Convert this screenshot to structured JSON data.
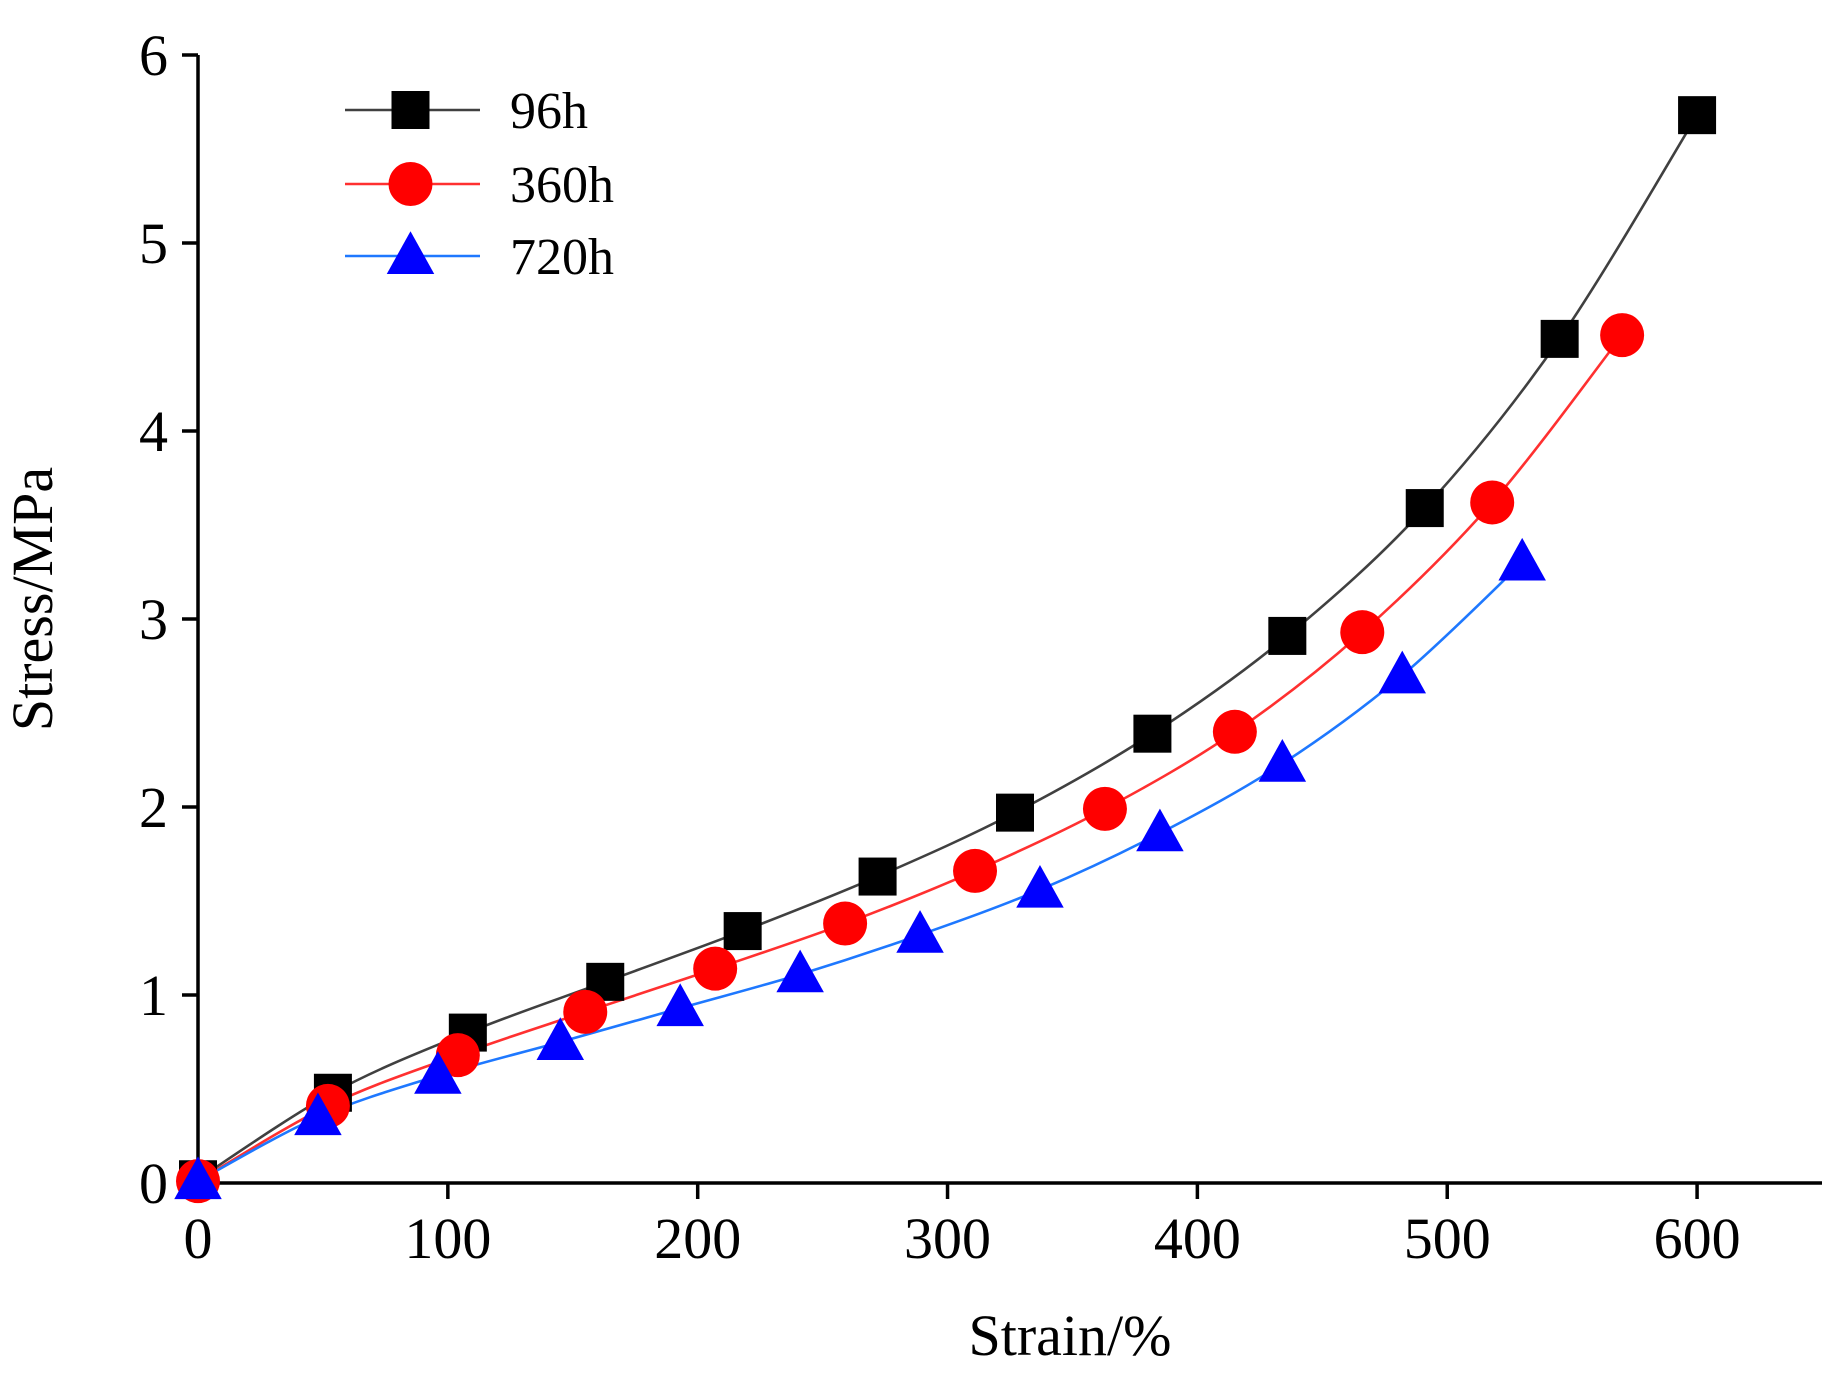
{
  "chart_data": {
    "type": "line",
    "title": "",
    "xlabel": "Strain/%",
    "ylabel": "Stress/MPa",
    "xlim": [
      0,
      650
    ],
    "ylim": [
      0,
      6
    ],
    "xticks": [
      0,
      100,
      200,
      300,
      400,
      500,
      600
    ],
    "yticks": [
      0,
      1,
      2,
      3,
      4,
      5,
      6
    ],
    "grid": false,
    "legend_position": "top-left",
    "series": [
      {
        "name": "96h",
        "color": "#404040",
        "marker": "square",
        "marker_color": "#000000",
        "x": [
          0,
          54,
          108,
          163,
          218,
          272,
          327,
          382,
          436,
          491,
          545,
          600
        ],
        "y": [
          0.02,
          0.48,
          0.8,
          1.07,
          1.34,
          1.63,
          1.97,
          2.39,
          2.91,
          3.59,
          4.49,
          5.68
        ]
      },
      {
        "name": "360h",
        "color": "#ff3030",
        "marker": "circle",
        "marker_color": "#ff0000",
        "x": [
          0,
          52,
          104,
          155,
          207,
          259,
          311,
          363,
          415,
          466,
          518,
          570
        ],
        "y": [
          0.01,
          0.41,
          0.68,
          0.91,
          1.14,
          1.38,
          1.66,
          1.99,
          2.4,
          2.93,
          3.62,
          4.51
        ]
      },
      {
        "name": "720h",
        "color": "#1e78ff",
        "marker": "triangle",
        "marker_color": "#0000ff",
        "x": [
          0,
          48,
          96,
          145,
          193,
          241,
          289,
          337,
          385,
          434,
          482,
          530
        ],
        "y": [
          0.01,
          0.35,
          0.57,
          0.75,
          0.93,
          1.11,
          1.32,
          1.56,
          1.86,
          2.23,
          2.7,
          3.3
        ]
      }
    ]
  }
}
